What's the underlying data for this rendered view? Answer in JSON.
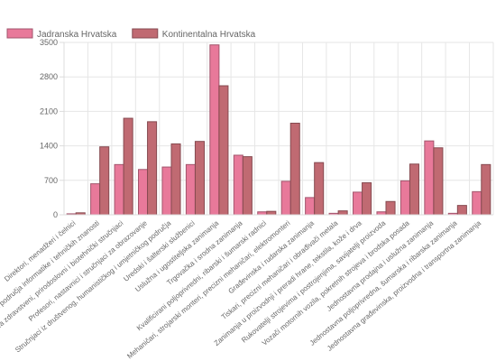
{
  "chart_data": {
    "type": "bar",
    "categories": [
      "Direktori, menadžeri i čelnici",
      "Stručnjaci za područja informatike i tehničkih znanosti",
      "Stručnjaci za zdravstveni, prirodoslovni i biotehnički stručnjaci",
      "Profesori, nastavnici i stručnjaci za obrazovanje",
      "Stručnjaci iz društvenog, humanističkog i umjetničkog područja",
      "Uredski i šalterski službenici",
      "Uslužna i ugostiteljska zanimanja",
      "Trgovačka i srodna zanimanja",
      "Kvalificirani poljoprivredni, ribarski i šumarski radnici",
      "Mehaničari, strojarski monteri, precizni mehaničari, elektromonteri",
      "Građevinska i rudarska zanimanja",
      "Tiskari, precizni mehaničari i obrađivači metala",
      "Zanimanja u proizvodnji i preradi hrane, tekstila, kože i drva",
      "Rukovatelji strojevima i postrojenjima, savijatelji proizvoda",
      "Vozači motornih vozila, pokretnih strojeva i brodska posada",
      "Jednostavna prodajna i uslužna zanimanja",
      "Jednostavna poljoprivredna, šumarska i ribarska zanimanja",
      "Jednostavna građevinska, proizvodna i transportna zanimanja"
    ],
    "series": [
      {
        "name": "Jadranska Hrvatska",
        "color": "#e8799a",
        "values": [
          20,
          630,
          1020,
          920,
          970,
          1020,
          3450,
          1210,
          60,
          680,
          350,
          30,
          460,
          60,
          690,
          1500,
          30,
          470
        ]
      },
      {
        "name": "Kontinentalna Hrvatska",
        "color": "#c06a72",
        "values": [
          40,
          1380,
          1960,
          1890,
          1440,
          1490,
          2620,
          1180,
          70,
          1860,
          1060,
          80,
          650,
          270,
          1030,
          1360,
          190,
          1020
        ]
      }
    ],
    "ylim": [
      0,
      3500
    ],
    "yticks": [
      0,
      700,
      1400,
      2100,
      2800,
      3500
    ],
    "legend_position": "top-left",
    "grid": true
  }
}
